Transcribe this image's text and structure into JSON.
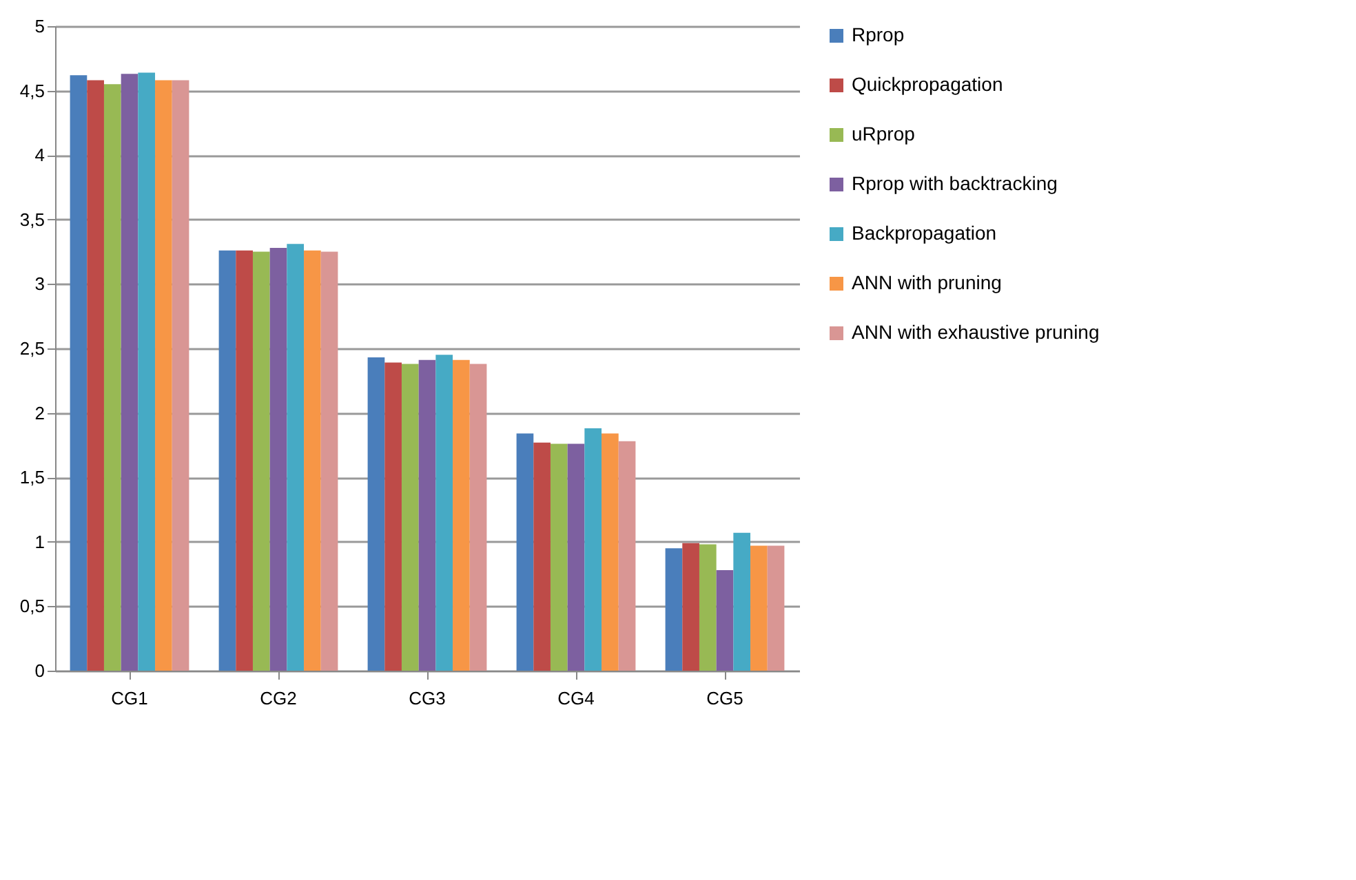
{
  "chart_data": {
    "type": "bar",
    "categories": [
      "CG1",
      "CG2",
      "CG3",
      "CG4",
      "CG5"
    ],
    "series": [
      {
        "name": "Rprop",
        "color": "#4a7ebb",
        "values": [
          4.62,
          3.26,
          2.43,
          1.84,
          0.95
        ]
      },
      {
        "name": "Quickpropagation",
        "color": "#be4b48",
        "values": [
          4.58,
          3.26,
          2.39,
          1.77,
          0.99
        ]
      },
      {
        "name": "uRprop",
        "color": "#98b954",
        "values": [
          4.55,
          3.25,
          2.38,
          1.76,
          0.98
        ]
      },
      {
        "name": "Rprop with backtracking",
        "color": "#7d60a0",
        "values": [
          4.63,
          3.28,
          2.41,
          1.76,
          0.78
        ]
      },
      {
        "name": "Backpropagation",
        "color": "#46aac5",
        "values": [
          4.64,
          3.31,
          2.45,
          1.88,
          1.07
        ]
      },
      {
        "name": "ANN with pruning",
        "color": "#f79646",
        "values": [
          4.58,
          3.26,
          2.41,
          1.84,
          0.97
        ]
      },
      {
        "name": "ANN with exhaustive pruning",
        "color": "#d99694",
        "values": [
          4.58,
          3.25,
          2.38,
          1.78,
          0.97
        ]
      }
    ],
    "ylim": [
      0,
      5
    ],
    "yticks": [
      0,
      {
        "value": 0.5,
        "label": "0,5"
      },
      1,
      {
        "value": 1.5,
        "label": "1,5"
      },
      2,
      {
        "value": 2.5,
        "label": "2,5"
      },
      3,
      {
        "value": 3.5,
        "label": "3,5"
      },
      4,
      {
        "value": 4.5,
        "label": "4,5"
      },
      5
    ],
    "grid": "y",
    "legend": "right"
  }
}
